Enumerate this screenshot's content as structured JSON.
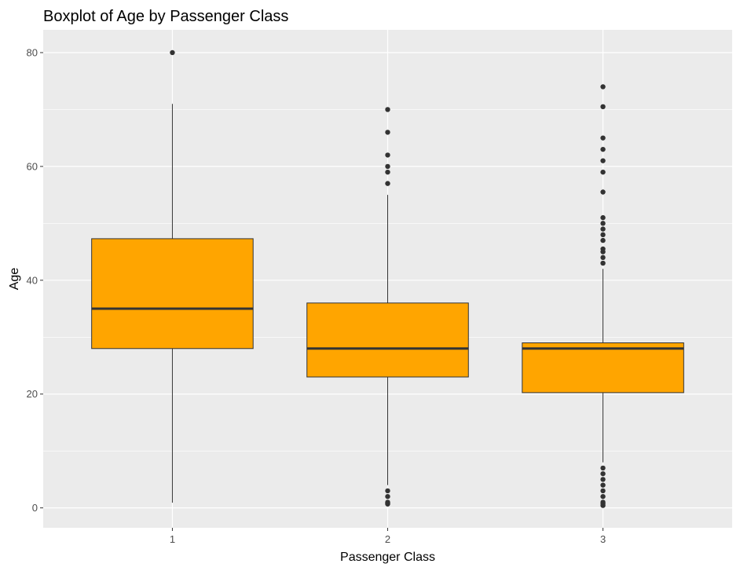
{
  "chart_data": {
    "type": "boxplot",
    "title": "Boxplot of Age by Passenger Class",
    "xlabel": "Passenger Class",
    "ylabel": "Age",
    "categories": [
      "1",
      "2",
      "3"
    ],
    "ylim": [
      -3.5,
      84
    ],
    "yticks": [
      0,
      20,
      40,
      60,
      80
    ],
    "grid": true,
    "legend": "none",
    "colors": {
      "panel": "#ebebeb",
      "grid": "#ffffff",
      "box_fill": "#ffa500",
      "box_line": "#333333",
      "outlier": "#333333",
      "tick": "#4d4d4d"
    },
    "boxes": [
      {
        "category": "1",
        "whisker_low": 0.92,
        "q1": 28,
        "median": 35,
        "q3": 47.3,
        "whisker_high": 71,
        "outliers": [
          80
        ]
      },
      {
        "category": "2",
        "whisker_low": 4,
        "q1": 23,
        "median": 28,
        "q3": 36,
        "whisker_high": 55,
        "outliers": [
          0.67,
          0.83,
          1,
          2,
          3,
          57,
          59,
          60,
          62,
          66,
          70
        ]
      },
      {
        "category": "3",
        "whisker_low": 8,
        "q1": 20.25,
        "median": 28,
        "q3": 29,
        "whisker_high": 42,
        "outliers": [
          0.42,
          0.75,
          1,
          2,
          3,
          4,
          5,
          6,
          7,
          43,
          44,
          45,
          45.5,
          47,
          48,
          49,
          50,
          51,
          55.5,
          59,
          61,
          63,
          65,
          70.5,
          74
        ]
      }
    ]
  }
}
